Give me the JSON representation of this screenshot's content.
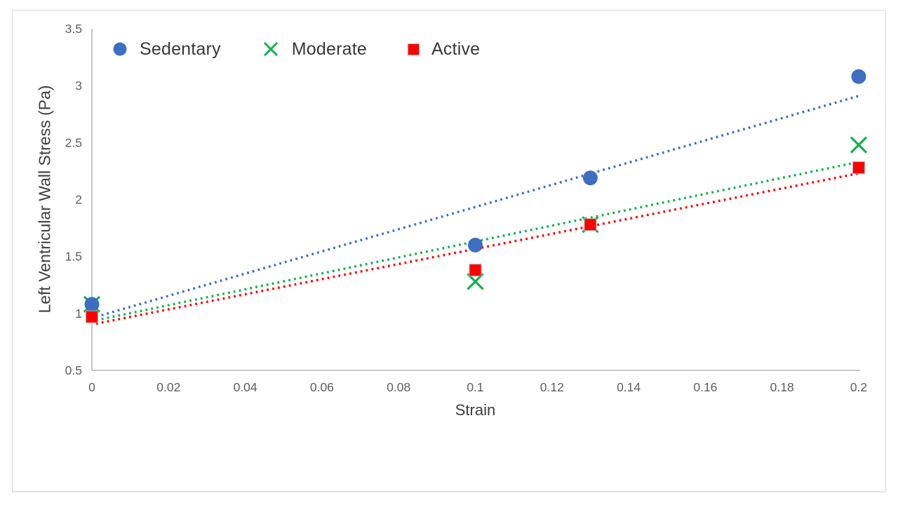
{
  "chart_data": {
    "type": "scatter",
    "title": "",
    "xlabel": "Strain",
    "ylabel": "Left Ventricular Wall Stress (Pa)",
    "xlim": [
      0,
      0.2
    ],
    "ylim": [
      0.5,
      3.5
    ],
    "x_ticks": [
      "0",
      "0.02",
      "0.04",
      "0.06",
      "0.08",
      "0.1",
      "0.12",
      "0.14",
      "0.16",
      "0.18",
      "0.2"
    ],
    "y_ticks": [
      "3.5",
      "3",
      "2.5",
      "2",
      "1.5",
      "1",
      "0.5"
    ],
    "grid": false,
    "legend_position": "top-inside-left",
    "axis_color": "#c8c8c8",
    "tick_label_color": "#5e5e5e",
    "axis_title_color": "#3d3d3d",
    "legend_text_color": "#383838",
    "series": [
      {
        "name": "Sedentary",
        "marker": "circle",
        "color": "#3e6ec0",
        "x": [
          0,
          0.1,
          0.13,
          0.2
        ],
        "y": [
          1.08,
          1.6,
          2.19,
          3.08
        ],
        "trendline": {
          "style": "dotted",
          "x_start": 0,
          "y_start": 0.97,
          "x_end": 0.2,
          "y_end": 2.91
        }
      },
      {
        "name": "Moderate",
        "marker": "x",
        "color": "#12b04f",
        "x": [
          0,
          0.1,
          0.13,
          0.2
        ],
        "y": [
          1.08,
          1.28,
          1.78,
          2.48
        ],
        "trendline": {
          "style": "dotted",
          "x_start": 0,
          "y_start": 0.94,
          "x_end": 0.2,
          "y_end": 2.33
        }
      },
      {
        "name": "Active",
        "marker": "square",
        "color": "#fe0000",
        "x": [
          0,
          0.1,
          0.13,
          0.2
        ],
        "y": [
          0.97,
          1.38,
          1.78,
          2.28
        ],
        "trendline": {
          "style": "dotted",
          "x_start": 0,
          "y_start": 0.91,
          "x_end": 0.2,
          "y_end": 2.23
        }
      }
    ]
  }
}
